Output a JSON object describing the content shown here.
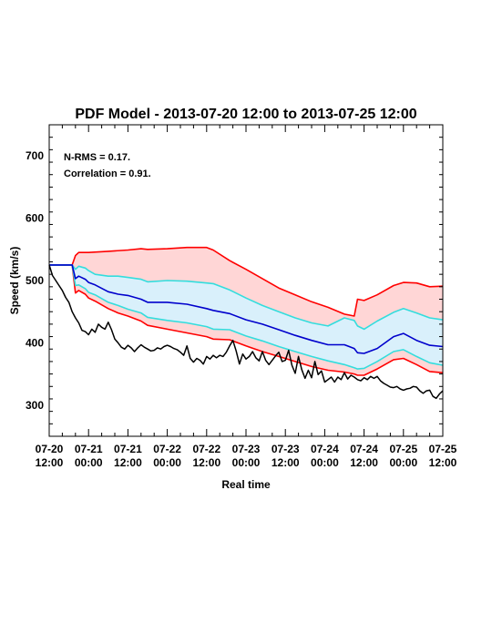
{
  "chart_data": {
    "type": "line",
    "title": "PDF Model - 2013-07-20 12:00 to 2013-07-25 12:00",
    "xlabel": "Real time",
    "ylabel": "Speed (km/s)",
    "ylim": [
      250,
      750
    ],
    "xlim": [
      0,
      120
    ],
    "x_unit": "hours since 2013-07-20 12:00",
    "yticks": [
      300,
      400,
      500,
      600,
      700
    ],
    "xticks": [
      {
        "x": 0,
        "line1": "07-20",
        "line2": "12:00"
      },
      {
        "x": 12,
        "line1": "07-21",
        "line2": "00:00"
      },
      {
        "x": 24,
        "line1": "07-21",
        "line2": "12:00"
      },
      {
        "x": 36,
        "line1": "07-22",
        "line2": "00:00"
      },
      {
        "x": 48,
        "line1": "07-22",
        "line2": "12:00"
      },
      {
        "x": 60,
        "line1": "07-23",
        "line2": "00:00"
      },
      {
        "x": 72,
        "line1": "07-23",
        "line2": "12:00"
      },
      {
        "x": 84,
        "line1": "07-24",
        "line2": "00:00"
      },
      {
        "x": 96,
        "line1": "07-24",
        "line2": "12:00"
      },
      {
        "x": 108,
        "line1": "07-25",
        "line2": "00:00"
      },
      {
        "x": 120,
        "line1": "07-25",
        "line2": "12:00"
      }
    ],
    "annotations": [
      "N-RMS = 0.17.",
      "Correlation = 0.91."
    ],
    "grid": false,
    "colors": {
      "outer_band": "#ffd6d6",
      "inner_band": "#d9f0fb",
      "outer_edge": "#ff0000",
      "inner_edge": "#33dddd",
      "median": "#0000cc",
      "observed": "#000000"
    },
    "series": [
      {
        "role": "outer_upper",
        "x": [
          0,
          7,
          8,
          9,
          12,
          18,
          24,
          28,
          30,
          36,
          42,
          48,
          50,
          55,
          60,
          65,
          70,
          75,
          80,
          85,
          90,
          93,
          94,
          96,
          100,
          105,
          108,
          112,
          116,
          120
        ],
        "values": [
          525,
          525,
          540,
          545,
          545,
          547,
          549,
          551,
          550,
          551,
          553,
          553,
          549,
          532,
          518,
          503,
          488,
          477,
          466,
          457,
          446,
          443,
          470,
          468,
          477,
          492,
          497,
          496,
          490,
          491
        ]
      },
      {
        "role": "inner_upper",
        "x": [
          0,
          7,
          8,
          9,
          11,
          12,
          14,
          18,
          21,
          24,
          28,
          30,
          36,
          42,
          48,
          50,
          55,
          60,
          65,
          70,
          75,
          80,
          85,
          90,
          93,
          94,
          96,
          100,
          105,
          108,
          112,
          116,
          120
        ],
        "values": [
          525,
          525,
          518,
          523,
          520,
          516,
          510,
          507,
          507,
          505,
          502,
          498,
          500,
          499,
          496,
          495,
          485,
          472,
          460,
          450,
          440,
          432,
          427,
          440,
          436,
          427,
          422,
          435,
          449,
          455,
          448,
          440,
          437
        ]
      },
      {
        "role": "median",
        "x": [
          0,
          7,
          8,
          9,
          11,
          12,
          14,
          18,
          21,
          24,
          28,
          30,
          36,
          42,
          48,
          50,
          55,
          60,
          65,
          70,
          75,
          80,
          85,
          90,
          93,
          94,
          96,
          100,
          105,
          108,
          112,
          116,
          120
        ],
        "values": [
          525,
          525,
          503,
          507,
          502,
          497,
          493,
          482,
          478,
          476,
          470,
          465,
          465,
          462,
          455,
          452,
          447,
          437,
          430,
          421,
          412,
          404,
          397,
          397,
          391,
          384,
          383,
          391,
          410,
          415,
          404,
          396,
          394
        ]
      },
      {
        "role": "inner_lower",
        "x": [
          0,
          7,
          8,
          9,
          11,
          12,
          14,
          18,
          21,
          24,
          28,
          30,
          36,
          42,
          48,
          50,
          55,
          60,
          65,
          70,
          75,
          80,
          85,
          90,
          93,
          94,
          96,
          100,
          105,
          108,
          112,
          116,
          120
        ],
        "values": [
          525,
          525,
          492,
          493,
          487,
          481,
          477,
          465,
          460,
          454,
          448,
          441,
          436,
          432,
          426,
          422,
          421,
          411,
          403,
          394,
          386,
          378,
          371,
          365,
          360,
          358,
          359,
          370,
          386,
          389,
          378,
          368,
          364
        ]
      },
      {
        "role": "outer_lower",
        "x": [
          0,
          7,
          8,
          9,
          11,
          12,
          14,
          18,
          21,
          24,
          28,
          30,
          36,
          42,
          48,
          50,
          55,
          60,
          65,
          70,
          75,
          80,
          85,
          90,
          93,
          94,
          96,
          100,
          105,
          108,
          112,
          116,
          120
        ],
        "values": [
          525,
          525,
          480,
          484,
          478,
          472,
          467,
          455,
          448,
          443,
          435,
          428,
          422,
          416,
          410,
          406,
          405,
          395,
          386,
          378,
          370,
          362,
          356,
          353,
          350,
          348,
          348,
          358,
          373,
          375,
          365,
          354,
          352
        ]
      },
      {
        "role": "observed",
        "x": [
          0,
          1,
          2,
          3,
          4,
          5,
          6,
          7,
          8,
          9,
          10,
          11,
          12,
          13,
          14,
          15,
          16,
          17,
          18,
          19,
          20,
          21,
          22,
          23,
          24,
          25,
          26,
          27,
          28,
          29,
          30,
          31,
          32,
          33,
          34,
          35,
          36,
          37,
          38,
          39,
          40,
          41,
          42,
          43,
          44,
          45,
          46,
          47,
          48,
          49,
          50,
          51,
          52,
          53,
          54,
          55,
          56,
          57,
          58,
          59,
          60,
          61,
          62,
          63,
          64,
          65,
          66,
          67,
          68,
          69,
          70,
          71,
          72,
          73,
          74,
          75,
          76,
          77,
          78,
          79,
          80,
          81,
          82,
          83,
          84,
          85,
          86,
          87,
          88,
          89,
          90,
          91,
          92,
          93,
          94,
          95,
          96,
          97,
          98,
          99,
          100,
          101,
          102,
          103,
          104,
          105,
          106,
          107,
          108,
          109,
          110,
          111,
          112,
          113,
          114,
          115,
          116,
          117,
          118,
          119,
          120
        ],
        "values": [
          525,
          508,
          500,
          492,
          484,
          473,
          465,
          450,
          440,
          432,
          420,
          418,
          413,
          422,
          417,
          430,
          425,
          422,
          433,
          421,
          406,
          400,
          393,
          390,
          396,
          392,
          386,
          392,
          397,
          393,
          390,
          387,
          388,
          392,
          390,
          394,
          396,
          394,
          391,
          389,
          385,
          380,
          395,
          375,
          369,
          375,
          372,
          366,
          378,
          374,
          380,
          376,
          380,
          378,
          385,
          395,
          404,
          387,
          366,
          382,
          374,
          378,
          386,
          376,
          371,
          386,
          372,
          365,
          372,
          379,
          385,
          370,
          372,
          388,
          364,
          351,
          378,
          357,
          343,
          356,
          344,
          370,
          349,
          355,
          337,
          341,
          345,
          337,
          345,
          341,
          352,
          342,
          348,
          345,
          341,
          339,
          344,
          341,
          346,
          343,
          346,
          339,
          335,
          332,
          329,
          328,
          330,
          326,
          324,
          326,
          327,
          330,
          329,
          323,
          319,
          323,
          324,
          314,
          311,
          318,
          323
        ]
      }
    ]
  }
}
